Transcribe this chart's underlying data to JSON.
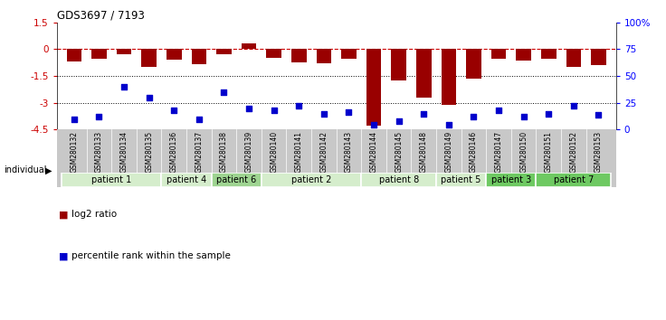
{
  "title": "GDS3697 / 7193",
  "samples": [
    "GSM280132",
    "GSM280133",
    "GSM280134",
    "GSM280135",
    "GSM280136",
    "GSM280137",
    "GSM280138",
    "GSM280139",
    "GSM280140",
    "GSM280141",
    "GSM280142",
    "GSM280143",
    "GSM280144",
    "GSM280145",
    "GSM280148",
    "GSM280149",
    "GSM280146",
    "GSM280147",
    "GSM280150",
    "GSM280151",
    "GSM280152",
    "GSM280153"
  ],
  "log2_ratio": [
    -0.7,
    -0.55,
    -0.3,
    -1.0,
    -0.6,
    -0.85,
    -0.3,
    0.35,
    -0.5,
    -0.75,
    -0.8,
    -0.55,
    -4.3,
    -1.75,
    -2.7,
    -3.1,
    -1.65,
    -0.55,
    -0.65,
    -0.55,
    -1.0,
    -0.9
  ],
  "percentile_rank": [
    10,
    12,
    40,
    30,
    18,
    10,
    35,
    20,
    18,
    22,
    15,
    16,
    5,
    8,
    15,
    5,
    12,
    18,
    12,
    15,
    22,
    14
  ],
  "patients": [
    {
      "label": "patient 1",
      "indices": [
        0,
        1,
        2,
        3
      ],
      "color": "#d5edcc"
    },
    {
      "label": "patient 4",
      "indices": [
        4,
        5
      ],
      "color": "#d5edcc"
    },
    {
      "label": "patient 6",
      "indices": [
        6,
        7
      ],
      "color": "#9ed491"
    },
    {
      "label": "patient 2",
      "indices": [
        8,
        9,
        10,
        11
      ],
      "color": "#d5edcc"
    },
    {
      "label": "patient 8",
      "indices": [
        12,
        13,
        14
      ],
      "color": "#d5edcc"
    },
    {
      "label": "patient 5",
      "indices": [
        15,
        16
      ],
      "color": "#d5edcc"
    },
    {
      "label": "patient 3",
      "indices": [
        17,
        18
      ],
      "color": "#6ec962"
    },
    {
      "label": "patient 7",
      "indices": [
        19,
        20,
        21
      ],
      "color": "#6ec962"
    }
  ],
  "ylim_left": [
    -4.5,
    1.5
  ],
  "ylim_right": [
    0,
    100
  ],
  "yticks_left": [
    1.5,
    0,
    -1.5,
    -3,
    -4.5
  ],
  "yticks_right": [
    0,
    25,
    50,
    75,
    100
  ],
  "dotted_lines": [
    -1.5,
    -3
  ],
  "bar_color": "#990000",
  "dot_color": "#0000cc",
  "bg_color": "#ffffff",
  "label_bg": "#c8c8c8",
  "legend_log2": "log2 ratio",
  "legend_pct": "percentile rank within the sample"
}
